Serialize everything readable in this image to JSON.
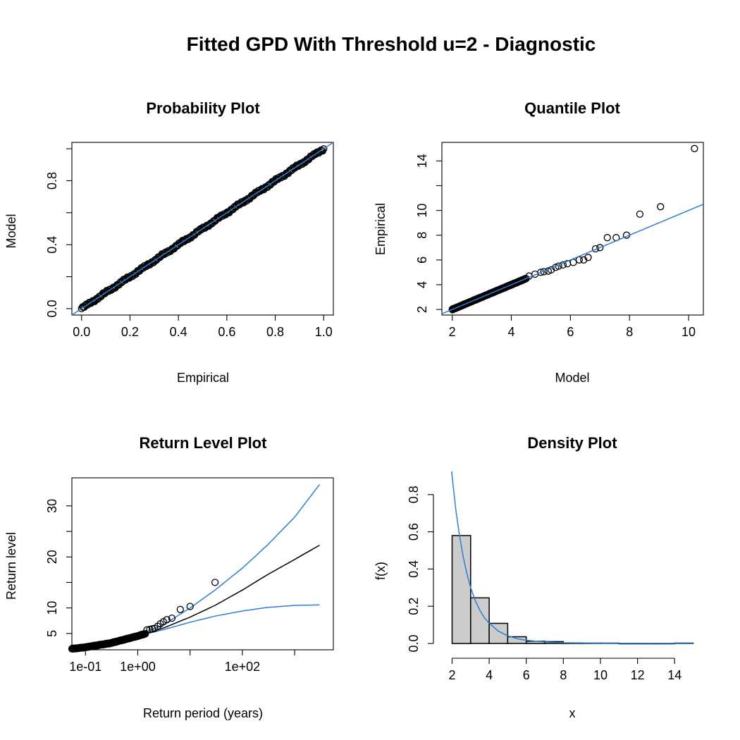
{
  "title": "Fitted GPD With Threshold u=2 - Diagnostic",
  "colors": {
    "fit_line": "#2a7fd6",
    "points": "#000000",
    "bar_fill": "#cccccc",
    "return_level_estimate": "#000000"
  },
  "chart_data": [
    {
      "type": "scatter",
      "title": "Probability Plot",
      "xlabel": "Empirical",
      "ylabel": "Model",
      "xlim": [
        -0.04,
        1.04
      ],
      "ylim": [
        -0.04,
        1.04
      ],
      "x_ticks": [
        0.0,
        0.2,
        0.4,
        0.6,
        0.8,
        1.0
      ],
      "x_tick_labels": [
        "0.0",
        "0.2",
        "0.4",
        "0.6",
        "0.8",
        "1.0"
      ],
      "y_ticks": [
        0.0,
        0.2,
        0.4,
        0.6,
        0.8,
        1.0
      ],
      "y_tick_labels": [
        "0.0",
        "",
        "0.4",
        "",
        "0.8",
        ""
      ],
      "points": {
        "kind": "dense_diagonal",
        "range": [
          0.0,
          1.0
        ],
        "count": 260,
        "description_values": "x from 0.00 to 1.00, y approximately equal to x"
      },
      "reference_line": {
        "intercept": 0,
        "slope": 1,
        "color": "#2a7fd6"
      }
    },
    {
      "type": "scatter",
      "title": "Quantile Plot",
      "xlabel": "Model",
      "ylabel": "Empirical",
      "xlim": [
        1.65,
        10.5
      ],
      "ylim": [
        1.55,
        15.5
      ],
      "x_ticks": [
        2,
        4,
        6,
        8,
        10
      ],
      "x_tick_labels": [
        "2",
        "4",
        "6",
        "8",
        "10"
      ],
      "y_ticks": [
        2,
        4,
        6,
        8,
        10,
        12,
        14
      ],
      "y_tick_labels": [
        "2",
        "4",
        "6",
        "8",
        "10",
        "",
        "14"
      ],
      "points_dense": {
        "range": [
          2.0,
          4.5
        ],
        "count": 150
      },
      "points": [
        [
          4.6,
          4.7
        ],
        [
          4.8,
          4.85
        ],
        [
          5.0,
          5.0
        ],
        [
          5.1,
          5.05
        ],
        [
          5.25,
          5.1
        ],
        [
          5.35,
          5.2
        ],
        [
          5.5,
          5.4
        ],
        [
          5.6,
          5.5
        ],
        [
          5.75,
          5.6
        ],
        [
          5.9,
          5.7
        ],
        [
          6.1,
          5.8
        ],
        [
          6.3,
          6.0
        ],
        [
          6.45,
          6.0
        ],
        [
          6.6,
          6.2
        ],
        [
          6.85,
          6.9
        ],
        [
          7.0,
          7.0
        ],
        [
          7.25,
          7.8
        ],
        [
          7.55,
          7.8
        ],
        [
          7.9,
          8.0
        ],
        [
          8.35,
          9.7
        ],
        [
          9.05,
          10.3
        ],
        [
          10.2,
          15.0
        ]
      ],
      "reference_line": {
        "intercept": 0,
        "slope": 1,
        "color": "#2a7fd6"
      }
    },
    {
      "type": "line",
      "title": "Return Level Plot",
      "xlabel": "Return period (years)",
      "ylabel": "Return level",
      "x_scale": "log",
      "xlim": [
        0.055,
        5500
      ],
      "ylim": [
        1.8,
        35.5
      ],
      "x_ticks": [
        0.1,
        1,
        10,
        100,
        1000
      ],
      "x_tick_labels": [
        "1e-01",
        "1e+00",
        "",
        "1e+02",
        ""
      ],
      "y_ticks": [
        5,
        10,
        15,
        20,
        25,
        30
      ],
      "y_tick_labels": [
        "5",
        "10",
        "",
        "20",
        "",
        "30"
      ],
      "series": [
        {
          "role": "estimate",
          "color": "#000000",
          "x": [
            0.055,
            0.1,
            0.3,
            1,
            3,
            10,
            30,
            100,
            300,
            1000,
            3000
          ],
          "y": [
            2.0,
            2.3,
            3.1,
            4.5,
            6.0,
            8.2,
            10.5,
            13.5,
            16.5,
            19.5,
            22.3
          ]
        },
        {
          "role": "upper confidence bound",
          "color": "#2a7fd6",
          "x": [
            1,
            3,
            10,
            30,
            100,
            300,
            1000,
            3000
          ],
          "y": [
            4.7,
            6.6,
            10.0,
            13.5,
            17.8,
            22.3,
            27.8,
            34.2
          ]
        },
        {
          "role": "lower confidence bound",
          "color": "#2a7fd6",
          "x": [
            1,
            3,
            10,
            30,
            100,
            300,
            1000,
            3000
          ],
          "y": [
            4.5,
            5.7,
            7.2,
            8.4,
            9.4,
            10.1,
            10.5,
            10.6
          ]
        }
      ],
      "points_dense": {
        "x_range": [
          0.055,
          1.4
        ],
        "count": 120
      },
      "points": [
        [
          1.5,
          5.7
        ],
        [
          1.7,
          5.8
        ],
        [
          1.9,
          5.9
        ],
        [
          2.1,
          6.0
        ],
        [
          2.4,
          6.4
        ],
        [
          2.7,
          6.9
        ],
        [
          3.1,
          7.3
        ],
        [
          3.6,
          7.7
        ],
        [
          4.5,
          8.0
        ],
        [
          6.5,
          9.7
        ],
        [
          10,
          10.3
        ],
        [
          30,
          15.0
        ]
      ]
    },
    {
      "type": "bar",
      "title": "Density Plot",
      "xlabel": "x",
      "ylabel": "f(x)",
      "xlim": [
        1.45,
        15.55
      ],
      "ylim": [
        -0.034,
        0.89
      ],
      "x_ticks": [
        2,
        4,
        6,
        8,
        10,
        12,
        14
      ],
      "x_tick_labels": [
        "2",
        "4",
        "6",
        "8",
        "10",
        "12",
        "14"
      ],
      "y_ticks": [
        0.0,
        0.2,
        0.4,
        0.6,
        0.8
      ],
      "y_tick_labels": [
        "0.0",
        "0.2",
        "0.4",
        "0.6",
        "0.8"
      ],
      "bins": [
        [
          2,
          3,
          0.58
        ],
        [
          3,
          4,
          0.245
        ],
        [
          4,
          5,
          0.108
        ],
        [
          5,
          6,
          0.036
        ],
        [
          6,
          7,
          0.012
        ],
        [
          7,
          8,
          0.01
        ],
        [
          8,
          9,
          0.003
        ],
        [
          9,
          10,
          0.002
        ],
        [
          10,
          11,
          0.002
        ],
        [
          11,
          12,
          0.0
        ],
        [
          12,
          13,
          0.0
        ],
        [
          13,
          14,
          0.0
        ],
        [
          14,
          15,
          0.002
        ]
      ],
      "density_curve": {
        "color": "#2a7fd6",
        "x": [
          1.98,
          2.0,
          2.2,
          2.4,
          2.6,
          2.8,
          3.0,
          3.25,
          3.5,
          3.75,
          4.0,
          4.5,
          5.0,
          5.5,
          6.0,
          7.0,
          8.0,
          10.0,
          12.0,
          15.0
        ],
        "y": [
          0.925,
          0.9,
          0.72,
          0.58,
          0.465,
          0.375,
          0.3,
          0.23,
          0.178,
          0.138,
          0.108,
          0.066,
          0.041,
          0.026,
          0.017,
          0.008,
          0.004,
          0.001,
          0.0003,
          0.0001
        ]
      }
    }
  ]
}
